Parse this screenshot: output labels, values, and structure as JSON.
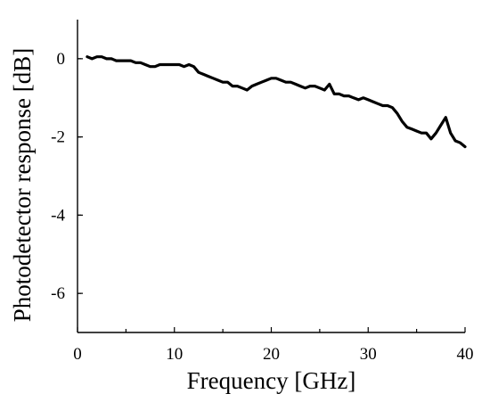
{
  "chart_data": {
    "type": "line",
    "title": "",
    "xlabel": "Frequency [GHz]",
    "ylabel": "Photodetector response [dB]",
    "xlim": [
      0,
      40
    ],
    "ylim": [
      -7,
      1
    ],
    "x_ticks": [
      0,
      10,
      20,
      30,
      40
    ],
    "y_ticks": [
      0,
      -2,
      -4,
      -6
    ],
    "x_tick_labels": [
      "0",
      "10",
      "20",
      "30",
      "40"
    ],
    "y_tick_labels": [
      "0",
      "-2",
      "-4",
      "-6"
    ],
    "grid": false,
    "series": [
      {
        "color": "#000000",
        "x": [
          1.0,
          1.5,
          2.0,
          2.5,
          3.0,
          3.5,
          4.0,
          4.5,
          5.0,
          5.5,
          6.0,
          6.5,
          7.0,
          7.5,
          8.0,
          8.5,
          9.0,
          9.5,
          10.0,
          10.5,
          11.0,
          11.5,
          12.0,
          12.5,
          13.0,
          13.5,
          14.0,
          14.5,
          15.0,
          15.5,
          16.0,
          16.5,
          17.0,
          17.5,
          18.0,
          18.5,
          19.0,
          19.5,
          20.0,
          20.5,
          21.0,
          21.5,
          22.0,
          22.5,
          23.0,
          23.5,
          24.0,
          24.5,
          25.0,
          25.5,
          26.0,
          26.5,
          27.0,
          27.5,
          28.0,
          28.5,
          29.0,
          29.5,
          30.0,
          30.5,
          31.0,
          31.5,
          32.0,
          32.5,
          33.0,
          33.5,
          34.0,
          34.5,
          35.0,
          35.5,
          36.0,
          36.5,
          37.0,
          37.5,
          38.0,
          38.5,
          39.0,
          39.5,
          40.0
        ],
        "y": [
          0.05,
          0.0,
          0.05,
          0.05,
          0.0,
          0.0,
          -0.05,
          -0.05,
          -0.05,
          -0.05,
          -0.1,
          -0.1,
          -0.15,
          -0.2,
          -0.2,
          -0.15,
          -0.15,
          -0.15,
          -0.15,
          -0.15,
          -0.2,
          -0.15,
          -0.2,
          -0.35,
          -0.4,
          -0.45,
          -0.5,
          -0.55,
          -0.6,
          -0.6,
          -0.7,
          -0.7,
          -0.75,
          -0.8,
          -0.7,
          -0.65,
          -0.6,
          -0.55,
          -0.5,
          -0.5,
          -0.55,
          -0.6,
          -0.6,
          -0.65,
          -0.7,
          -0.75,
          -0.7,
          -0.7,
          -0.75,
          -0.8,
          -0.65,
          -0.9,
          -0.9,
          -0.95,
          -0.95,
          -1.0,
          -1.05,
          -1.0,
          -1.05,
          -1.1,
          -1.15,
          -1.2,
          -1.2,
          -1.25,
          -1.4,
          -1.6,
          -1.75,
          -1.8,
          -1.85,
          -1.9,
          -1.9,
          -2.05,
          -1.9,
          -1.7,
          -1.5,
          -1.9,
          -2.1,
          -2.15,
          -2.25
        ]
      }
    ]
  }
}
